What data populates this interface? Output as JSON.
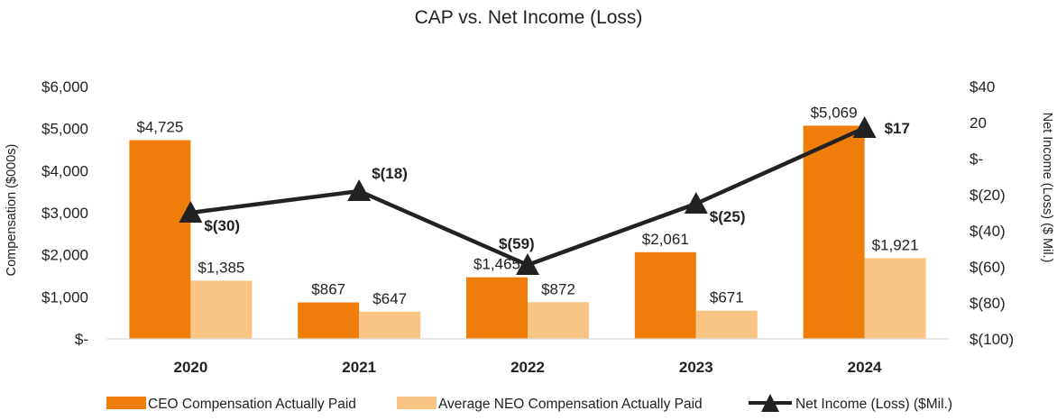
{
  "chart_data": {
    "type": "bar",
    "title": "CAP vs. Net Income (Loss)",
    "categories": [
      "2020",
      "2021",
      "2022",
      "2023",
      "2024"
    ],
    "ylabel": "Compensation ($000s)",
    "y2label": "Net Income (Loss) ($ Mil.)",
    "ylim": [
      0,
      6000
    ],
    "y2lim": [
      -100,
      40
    ],
    "grid": false,
    "legend_position": "bottom",
    "y_ticks": [
      {
        "value": 0,
        "label": "$-"
      },
      {
        "value": 1000,
        "label": "$1,000"
      },
      {
        "value": 2000,
        "label": "$2,000"
      },
      {
        "value": 3000,
        "label": "$3,000"
      },
      {
        "value": 4000,
        "label": "$4,000"
      },
      {
        "value": 5000,
        "label": "$5,000"
      },
      {
        "value": 6000,
        "label": "$6,000"
      }
    ],
    "y2_ticks": [
      {
        "value": -100,
        "label": "$(100)"
      },
      {
        "value": -80,
        "label": "$(80)"
      },
      {
        "value": -60,
        "label": "$(60)"
      },
      {
        "value": -40,
        "label": "$(40)"
      },
      {
        "value": -20,
        "label": "$(20)"
      },
      {
        "value": 0,
        "label": "$-"
      },
      {
        "value": 20,
        "label": "20"
      },
      {
        "value": 40,
        "label": "$40"
      }
    ],
    "series": [
      {
        "name": "CEO Compensation Actually Paid",
        "kind": "bar",
        "axis": "left",
        "color": "#EE7D0A",
        "values": [
          4725,
          867,
          1465,
          2061,
          5069
        ],
        "labels": [
          "$4,725",
          "$867",
          "$1,465",
          "$2,061",
          "$5,069"
        ]
      },
      {
        "name": "Average NEO Compensation Actually Paid",
        "kind": "bar",
        "axis": "left",
        "color": "#F8C585",
        "values": [
          1385,
          647,
          872,
          671,
          1921
        ],
        "labels": [
          "$1,385",
          "$647",
          "$872",
          "$671",
          "$1,921"
        ]
      },
      {
        "name": "Net Income (Loss) ($Mil.)",
        "kind": "line",
        "axis": "right",
        "color": "#222222",
        "marker": "triangle",
        "values": [
          -30,
          -18,
          -59,
          -25,
          17
        ],
        "labels": [
          "$(30)",
          "$(18)",
          "$(59)",
          "$(25)",
          "$17"
        ]
      }
    ]
  }
}
